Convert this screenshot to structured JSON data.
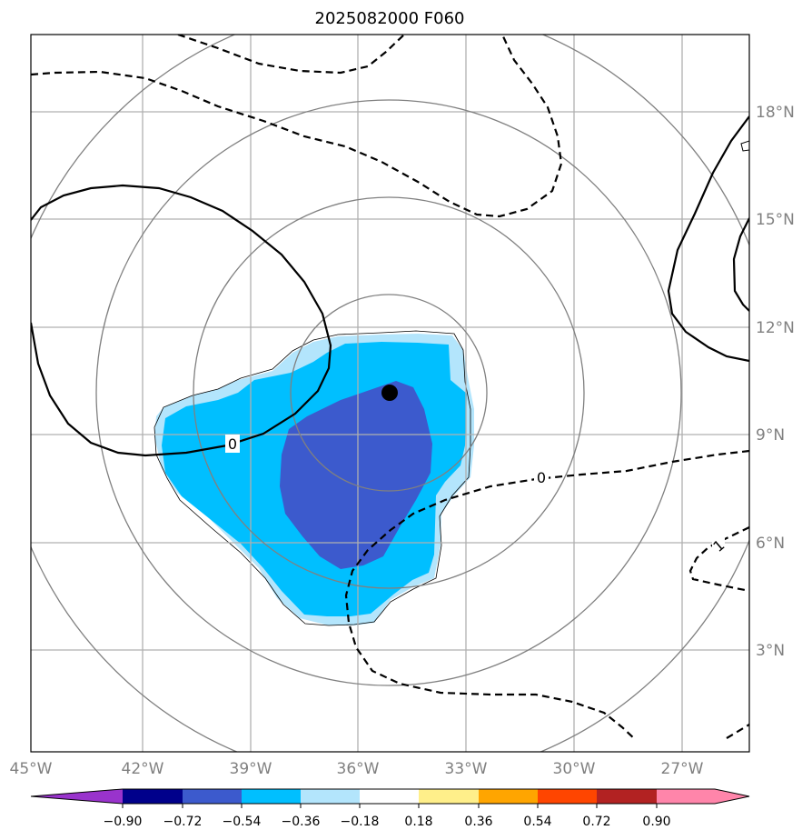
{
  "title": "2025082000 F060",
  "map": {
    "lon_ticks": [
      "45°W",
      "42°W",
      "39°W",
      "36°W",
      "33°W",
      "30°W",
      "27°W"
    ],
    "lat_ticks": [
      "18°N",
      "15°N",
      "12°N",
      "9°N",
      "6°N",
      "3°N"
    ],
    "contour_labels": [
      "0",
      "0",
      "1"
    ],
    "center_marker": "black-dot",
    "colors": {
      "gridline": "#b0b0b0",
      "range_ring": "#808080",
      "contour": "#000000",
      "neg_fill_light": "#b3e5fc",
      "neg_fill_mid": "#00bfff",
      "neg_fill_dark": "#3c5acd"
    }
  },
  "colorbar": {
    "tick_labels": [
      "−0.90",
      "−0.72",
      "−0.54",
      "−0.36",
      "−0.18",
      "0.18",
      "0.36",
      "0.54",
      "0.72",
      "0.90"
    ],
    "colors": [
      "#9933cc",
      "#00008b",
      "#3c5acd",
      "#00bfff",
      "#b3e5fc",
      "#ffffff",
      "#ffef8a",
      "#ffa500",
      "#ff4500",
      "#b22222",
      "#ff85aa"
    ]
  }
}
